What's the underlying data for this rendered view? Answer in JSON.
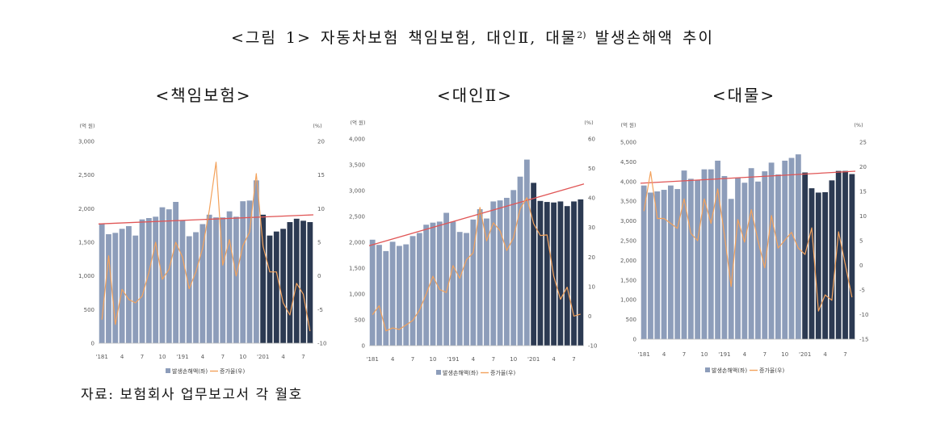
{
  "figure": {
    "title_before": "<그림 1> 자동차보험 책임보험, 대인Ⅱ, 대물",
    "title_sup": "2)",
    "title_after": " 발생손해액 추이",
    "source": "자료: 보험회사 업무보고서 각 월호"
  },
  "colors": {
    "bar": "#8d9dba",
    "bar_highlight": "#2c3a52",
    "growth_line": "#f3a25c",
    "trend_line": "#e05555"
  },
  "chart_data": [
    {
      "type": "bar",
      "title": "<책임보험>",
      "left_unit": "(억 원)",
      "right_unit": "(%)",
      "ylim_left": [
        0,
        3000
      ],
      "ylim_right": [
        -10,
        20
      ],
      "left_ticks": [
        "3,000",
        "2,500",
        "2,000",
        "1,500",
        "1,000",
        "500",
        "0"
      ],
      "right_ticks": [
        "20",
        "15",
        "10",
        "5",
        "0",
        "-5",
        "-10"
      ],
      "categories": [
        "'181",
        "",
        "",
        "4",
        "",
        "",
        "7",
        "",
        "",
        "10",
        "",
        "",
        "'191",
        "",
        "",
        "4",
        "",
        "",
        "7",
        "",
        "",
        "10",
        "",
        "",
        "'201",
        "",
        "",
        "4",
        "",
        "",
        "7",
        ""
      ],
      "highlight_from_index": 24,
      "trend_line": true,
      "grid": false,
      "legend": "bottom",
      "series": [
        {
          "name": "발생손해액(좌)",
          "type": "bar",
          "right_axis": false,
          "values": [
            1780,
            1620,
            1640,
            1700,
            1740,
            1600,
            1840,
            1860,
            1880,
            2020,
            1990,
            2100,
            1830,
            1590,
            1650,
            1770,
            1910,
            1870,
            1870,
            1960,
            1880,
            2110,
            2120,
            2420,
            1910,
            1600,
            1660,
            1700,
            1800,
            1850,
            1820,
            1800
          ]
        },
        {
          "name": "증가율(우)",
          "type": "line",
          "right_axis": true,
          "values": [
            -6.5,
            3.0,
            -7.2,
            -2.0,
            -3.5,
            -4.0,
            -3.0,
            0.5,
            5.0,
            -0.5,
            1.0,
            5.0,
            2.8,
            -1.9,
            0.6,
            4.1,
            9.8,
            16.9,
            1.6,
            5.4,
            0.0,
            4.5,
            6.5,
            15.2,
            4.4,
            0.6,
            0.6,
            -4.0,
            -5.8,
            -1.1,
            -2.7,
            -8.2
          ]
        }
      ]
    },
    {
      "type": "bar",
      "title": "<대인Ⅱ>",
      "left_unit": "(억 원)",
      "right_unit": "(%)",
      "ylim_left": [
        0,
        4000
      ],
      "ylim_right": [
        -10,
        60
      ],
      "left_ticks": [
        "4,000",
        "3,500",
        "3,000",
        "2,500",
        "2,000",
        "1,500",
        "1,000",
        "500",
        "0"
      ],
      "right_ticks": [
        "60",
        "50",
        "40",
        "30",
        "20",
        "10",
        "0",
        "-10"
      ],
      "categories": [
        "'181",
        "",
        "",
        "4",
        "",
        "",
        "7",
        "",
        "",
        "10",
        "",
        "",
        "'191",
        "",
        "",
        "4",
        "",
        "",
        "7",
        "",
        "",
        "10",
        "",
        "",
        "'201",
        "",
        "",
        "4",
        "",
        "",
        "7",
        ""
      ],
      "highlight_from_index": 24,
      "trend_line": true,
      "grid": false,
      "legend": "bottom",
      "series": [
        {
          "name": "발생손해액(좌)",
          "type": "bar",
          "right_axis": false,
          "values": [
            2050,
            1950,
            1830,
            2010,
            1930,
            1960,
            2120,
            2180,
            2340,
            2380,
            2400,
            2570,
            2400,
            2200,
            2180,
            2440,
            2640,
            2460,
            2790,
            2810,
            2860,
            3010,
            3270,
            3600,
            3150,
            2800,
            2780,
            2770,
            2790,
            2700,
            2790,
            2830
          ]
        },
        {
          "name": "증가율(우)",
          "type": "line",
          "right_axis": true,
          "values": [
            0.5,
            3.5,
            -5.0,
            -4.0,
            -4.5,
            -3.0,
            -1.5,
            2.0,
            7.5,
            13.5,
            9.0,
            8.0,
            17.1,
            12.8,
            19.1,
            21.4,
            36.8,
            25.5,
            31.6,
            28.9,
            22.2,
            26.5,
            36.3,
            40.1,
            31.3,
            27.3,
            27.5,
            13.5,
            5.7,
            9.8,
            0.0,
            0.7
          ]
        }
      ]
    },
    {
      "type": "bar",
      "title": "<대물>",
      "left_unit": "(억 원)",
      "right_unit": "(%)",
      "ylim_left": [
        0,
        5000
      ],
      "ylim_right": [
        -15,
        25
      ],
      "left_ticks": [
        "5,000",
        "4,500",
        "4,000",
        "3,500",
        "3,000",
        "2,500",
        "2,000",
        "1,500",
        "1,000",
        "500",
        "0"
      ],
      "right_ticks": [
        "25",
        "20",
        "15",
        "10",
        "5",
        "0",
        "-5",
        "-10",
        "-15"
      ],
      "categories": [
        "'181",
        "",
        "",
        "4",
        "",
        "",
        "7",
        "",
        "",
        "10",
        "",
        "",
        "'191",
        "",
        "",
        "4",
        "",
        "",
        "7",
        "",
        "",
        "10",
        "",
        "",
        "'201",
        "",
        "",
        "4",
        "",
        "",
        "7",
        ""
      ],
      "highlight_from_index": 24,
      "trend_line": true,
      "grid": false,
      "legend": "bottom",
      "series": [
        {
          "name": "발생손해액(좌)",
          "type": "bar",
          "right_axis": false,
          "values": [
            3900,
            3720,
            3750,
            3790,
            3900,
            3810,
            4280,
            4070,
            4040,
            4310,
            4310,
            4530,
            4140,
            3560,
            4100,
            3970,
            4340,
            4000,
            4260,
            4480,
            4180,
            4530,
            4600,
            4690,
            4230,
            3830,
            3720,
            3730,
            4030,
            4270,
            4270,
            4190
          ]
        },
        {
          "name": "증가율(우)",
          "type": "line",
          "right_axis": true,
          "values": [
            11.0,
            19.0,
            9.5,
            9.5,
            8.5,
            7.5,
            13.5,
            6.5,
            5.0,
            13.5,
            8.5,
            15.5,
            6.2,
            -4.3,
            9.3,
            4.7,
            11.3,
            5.0,
            -0.5,
            10.1,
            3.5,
            5.1,
            6.7,
            3.5,
            2.2,
            7.6,
            -9.3,
            -6.0,
            -7.1,
            6.8,
            0.2,
            -6.5
          ]
        }
      ]
    }
  ]
}
